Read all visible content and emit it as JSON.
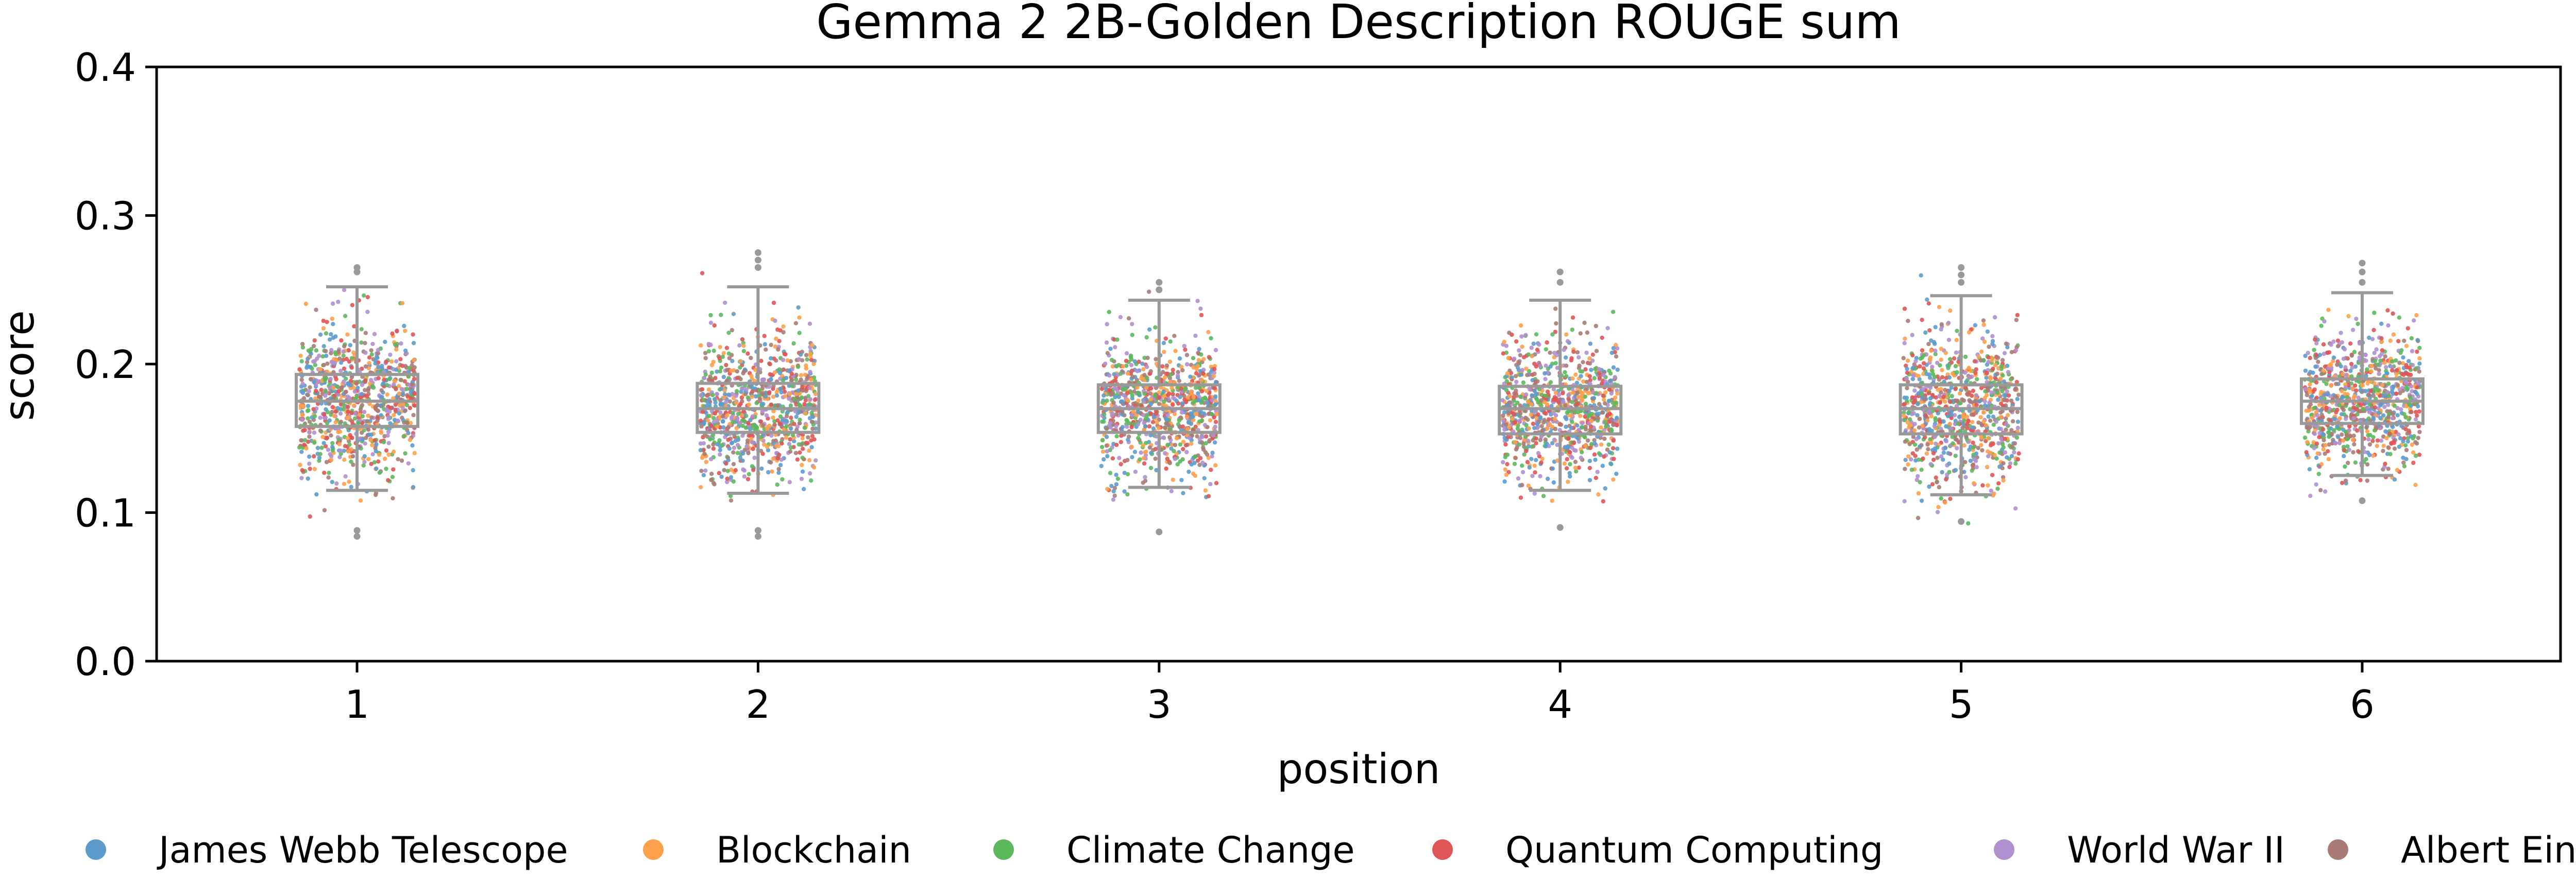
{
  "chart_data": {
    "type": "box-strip",
    "title": "Gemma 2 2B-Golden Description ROUGE sum",
    "xlabel": "position",
    "ylabel": "score",
    "ylim": [
      0.0,
      0.4
    ],
    "yticks": [
      "0.0",
      "0.1",
      "0.2",
      "0.3",
      "0.4"
    ],
    "categories": [
      "1",
      "2",
      "3",
      "4",
      "5",
      "6"
    ],
    "boxes": [
      {
        "category": "1",
        "whisker_low": 0.115,
        "q1": 0.158,
        "median": 0.175,
        "q3": 0.193,
        "whisker_high": 0.252
      },
      {
        "category": "2",
        "whisker_low": 0.113,
        "q1": 0.154,
        "median": 0.17,
        "q3": 0.187,
        "whisker_high": 0.252
      },
      {
        "category": "3",
        "whisker_low": 0.117,
        "q1": 0.154,
        "median": 0.17,
        "q3": 0.186,
        "whisker_high": 0.243
      },
      {
        "category": "4",
        "whisker_low": 0.115,
        "q1": 0.153,
        "median": 0.17,
        "q3": 0.185,
        "whisker_high": 0.243
      },
      {
        "category": "5",
        "whisker_low": 0.112,
        "q1": 0.153,
        "median": 0.17,
        "q3": 0.186,
        "whisker_high": 0.246
      },
      {
        "category": "6",
        "whisker_low": 0.125,
        "q1": 0.16,
        "median": 0.175,
        "q3": 0.19,
        "whisker_high": 0.248
      }
    ],
    "outliers": [
      {
        "category": "1",
        "values": [
          0.084,
          0.088,
          0.262,
          0.265
        ]
      },
      {
        "category": "2",
        "values": [
          0.084,
          0.088,
          0.265,
          0.27,
          0.275
        ]
      },
      {
        "category": "3",
        "values": [
          0.087,
          0.25,
          0.255
        ]
      },
      {
        "category": "4",
        "values": [
          0.09,
          0.255,
          0.262
        ]
      },
      {
        "category": "5",
        "values": [
          0.094,
          0.255,
          0.26,
          0.265
        ]
      },
      {
        "category": "6",
        "values": [
          0.108,
          0.255,
          0.262,
          0.268
        ]
      }
    ],
    "series": [
      {
        "name": "James Webb Telescope",
        "color": "#5b9ccc"
      },
      {
        "name": "Blockchain",
        "color": "#ffa04a"
      },
      {
        "name": "Climate Change",
        "color": "#5cb85c"
      },
      {
        "name": "Quantum Computing",
        "color": "#e05555"
      },
      {
        "name": "World War II",
        "color": "#b08fd0"
      },
      {
        "name": "Albert Einstein",
        "color": "#a87c75"
      }
    ],
    "box_color": "#999999",
    "legend_position": "bottom",
    "grid": false
  }
}
